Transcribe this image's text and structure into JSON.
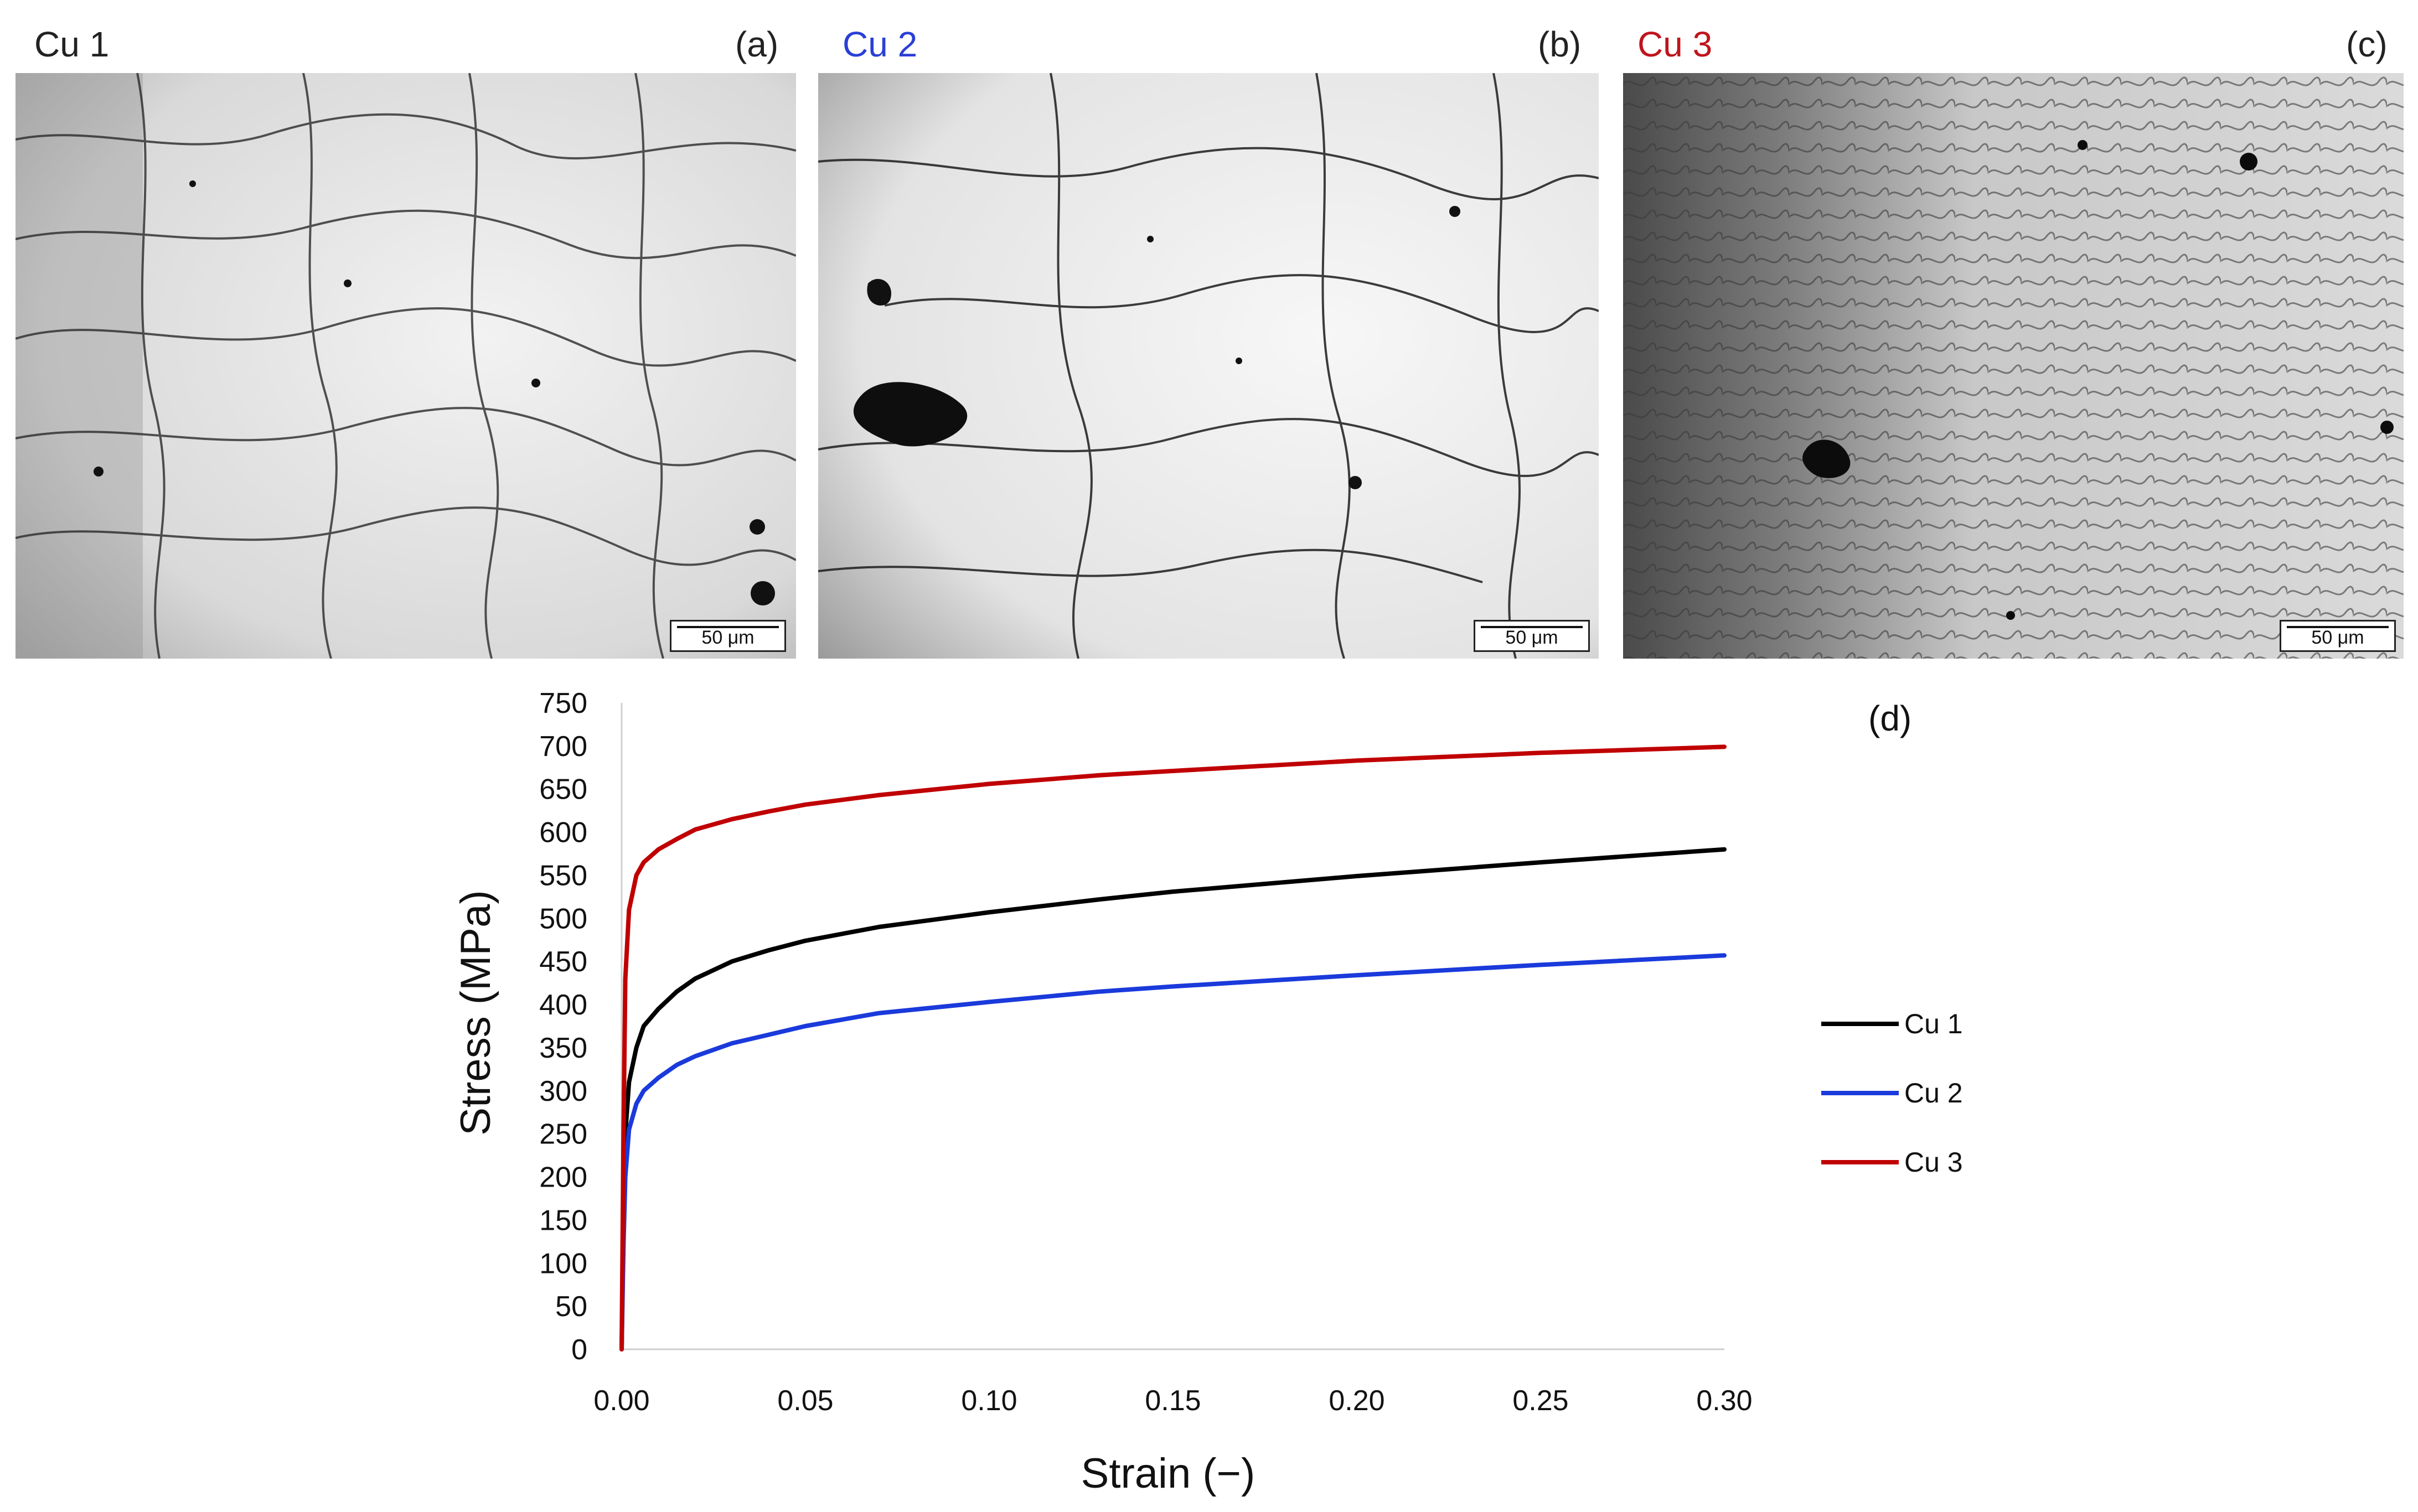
{
  "panels": [
    {
      "title": "Cu 1",
      "letter": "(a)",
      "title_color": "#222222",
      "scale_label": "50 μm"
    },
    {
      "title": "Cu 2",
      "letter": "(b)",
      "title_color": "#2a3fd6",
      "scale_label": "50 μm"
    },
    {
      "title": "Cu 3",
      "letter": "(c)",
      "title_color": "#c0141c",
      "scale_label": "50 μm"
    }
  ],
  "chart_data": {
    "type": "line",
    "panel_label": "(d)",
    "xlabel": "Strain (−)",
    "ylabel": "Stress (MPa)",
    "xlim": [
      0,
      0.3
    ],
    "ylim": [
      0,
      750
    ],
    "x_ticks": [
      "0.00",
      "0.05",
      "0.10",
      "0.15",
      "0.20",
      "0.25",
      "0.30"
    ],
    "y_ticks": [
      "0",
      "50",
      "100",
      "150",
      "200",
      "250",
      "300",
      "350",
      "400",
      "450",
      "500",
      "550",
      "600",
      "650",
      "700",
      "750"
    ],
    "grid": false,
    "legend_position": "right",
    "series": [
      {
        "name": "Cu 1",
        "color": "#000000",
        "points": [
          [
            0,
            0
          ],
          [
            0.0005,
            150
          ],
          [
            0.001,
            250
          ],
          [
            0.002,
            310
          ],
          [
            0.004,
            350
          ],
          [
            0.006,
            375
          ],
          [
            0.01,
            395
          ],
          [
            0.015,
            415
          ],
          [
            0.02,
            430
          ],
          [
            0.03,
            450
          ],
          [
            0.04,
            463
          ],
          [
            0.05,
            474
          ],
          [
            0.07,
            490
          ],
          [
            0.1,
            507
          ],
          [
            0.13,
            522
          ],
          [
            0.15,
            531
          ],
          [
            0.2,
            549
          ],
          [
            0.25,
            565
          ],
          [
            0.3,
            580
          ]
        ]
      },
      {
        "name": "Cu 2",
        "color": "#1a3adb",
        "points": [
          [
            0,
            0
          ],
          [
            0.0005,
            120
          ],
          [
            0.001,
            200
          ],
          [
            0.002,
            255
          ],
          [
            0.004,
            285
          ],
          [
            0.006,
            300
          ],
          [
            0.01,
            315
          ],
          [
            0.015,
            330
          ],
          [
            0.02,
            340
          ],
          [
            0.03,
            355
          ],
          [
            0.04,
            365
          ],
          [
            0.05,
            375
          ],
          [
            0.07,
            390
          ],
          [
            0.1,
            403
          ],
          [
            0.13,
            415
          ],
          [
            0.15,
            421
          ],
          [
            0.2,
            434
          ],
          [
            0.25,
            446
          ],
          [
            0.3,
            457
          ]
        ]
      },
      {
        "name": "Cu 3",
        "color": "#c00000",
        "points": [
          [
            0,
            0
          ],
          [
            0.0005,
            250
          ],
          [
            0.001,
            430
          ],
          [
            0.002,
            510
          ],
          [
            0.004,
            550
          ],
          [
            0.006,
            565
          ],
          [
            0.01,
            580
          ],
          [
            0.015,
            592
          ],
          [
            0.02,
            603
          ],
          [
            0.03,
            615
          ],
          [
            0.04,
            624
          ],
          [
            0.05,
            632
          ],
          [
            0.07,
            643
          ],
          [
            0.1,
            656
          ],
          [
            0.13,
            666
          ],
          [
            0.15,
            671
          ],
          [
            0.2,
            683
          ],
          [
            0.25,
            692
          ],
          [
            0.3,
            699
          ]
        ]
      }
    ]
  }
}
